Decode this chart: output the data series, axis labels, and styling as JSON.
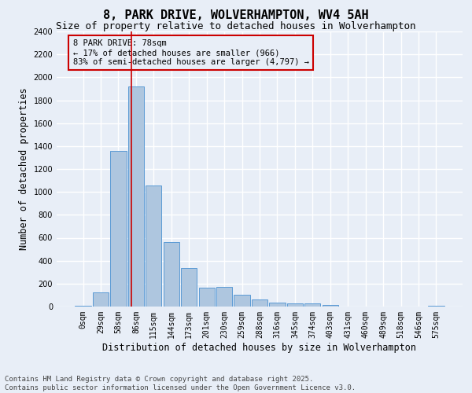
{
  "title": "8, PARK DRIVE, WOLVERHAMPTON, WV4 5AH",
  "subtitle": "Size of property relative to detached houses in Wolverhampton",
  "xlabel": "Distribution of detached houses by size in Wolverhampton",
  "ylabel": "Number of detached properties",
  "footer_line1": "Contains HM Land Registry data © Crown copyright and database right 2025.",
  "footer_line2": "Contains public sector information licensed under the Open Government Licence v3.0.",
  "bar_labels": [
    "0sqm",
    "29sqm",
    "58sqm",
    "86sqm",
    "115sqm",
    "144sqm",
    "173sqm",
    "201sqm",
    "230sqm",
    "259sqm",
    "288sqm",
    "316sqm",
    "345sqm",
    "374sqm",
    "403sqm",
    "431sqm",
    "460sqm",
    "489sqm",
    "518sqm",
    "546sqm",
    "575sqm"
  ],
  "bar_values": [
    10,
    125,
    1360,
    1920,
    1055,
    560,
    335,
    165,
    170,
    105,
    65,
    35,
    30,
    25,
    15,
    0,
    0,
    0,
    0,
    0,
    10
  ],
  "bar_color": "#aec6df",
  "bar_edge_color": "#5b9bd5",
  "bg_color": "#e8eef7",
  "grid_color": "#ffffff",
  "ylim": [
    0,
    2400
  ],
  "yticks": [
    0,
    200,
    400,
    600,
    800,
    1000,
    1200,
    1400,
    1600,
    1800,
    2000,
    2200,
    2400
  ],
  "vline_x": 2.72,
  "vline_color": "#cc0000",
  "annotation_text": "8 PARK DRIVE: 78sqm\n← 17% of detached houses are smaller (966)\n83% of semi-detached houses are larger (4,797) →",
  "annotation_box_color": "#cc0000",
  "title_fontsize": 11,
  "subtitle_fontsize": 9,
  "axis_label_fontsize": 8.5,
  "tick_fontsize": 7,
  "annotation_fontsize": 7.5,
  "footer_fontsize": 6.5
}
